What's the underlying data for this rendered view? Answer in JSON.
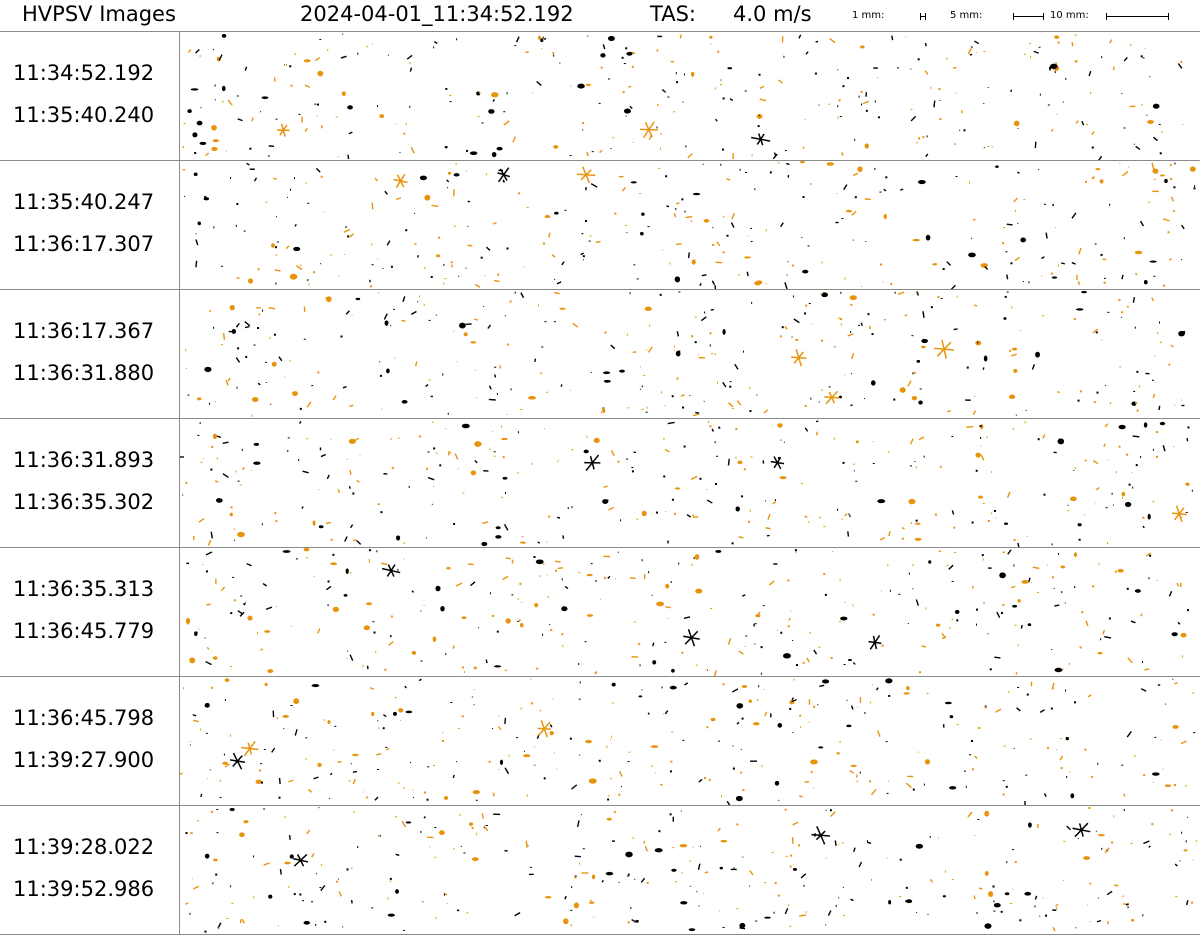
{
  "header": {
    "title": "HVPSV Images",
    "datetime": "2024-04-01_11:34:52.192",
    "tas_label": "TAS:",
    "tas_value": "4.0 m/s",
    "scales": [
      {
        "label": "1 mm:"
      },
      {
        "label": "5 mm:"
      },
      {
        "label": "10 mm:"
      }
    ]
  },
  "colors": {
    "particle_primary": "#000000",
    "particle_secondary": "#e8930c",
    "divider": "#8a8a8a",
    "background": "#ffffff"
  },
  "strips": [
    {
      "start": "11:34:52.192",
      "end": "11:35:40.240"
    },
    {
      "start": "11:35:40.247",
      "end": "11:36:17.307"
    },
    {
      "start": "11:36:17.367",
      "end": "11:36:31.880"
    },
    {
      "start": "11:36:31.893",
      "end": "11:36:35.302"
    },
    {
      "start": "11:36:35.313",
      "end": "11:36:45.779"
    },
    {
      "start": "11:36:45.798",
      "end": "11:39:27.900"
    },
    {
      "start": "11:39:28.022",
      "end": "11:39:52.986"
    }
  ]
}
